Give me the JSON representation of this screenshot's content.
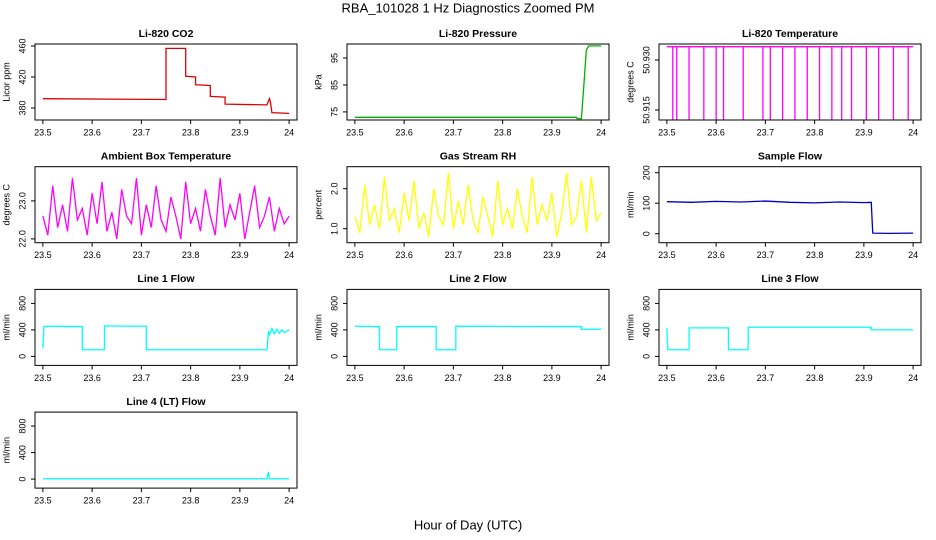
{
  "title": "RBA_101028  1 Hz Diagnostics Zoomed PM",
  "xlabel": "Hour of Day (UTC)",
  "chart_data": [
    {
      "type": "line",
      "title": "Li-820 CO2",
      "ylabel": "Licor ppm",
      "color": "#e00000",
      "x": [
        23.5,
        23.75,
        23.75,
        23.79,
        23.79,
        23.81,
        23.81,
        23.84,
        23.84,
        23.87,
        23.87,
        23.955,
        23.96,
        23.962,
        23.965,
        23.965,
        24.0
      ],
      "values": [
        392,
        391,
        457,
        457,
        421,
        420,
        410,
        409,
        395,
        394,
        385,
        384,
        392,
        388,
        374,
        374,
        373
      ],
      "xlim": [
        23.484,
        24.016
      ],
      "xticks": [
        23.5,
        23.6,
        23.7,
        23.8,
        23.9,
        24.0
      ],
      "ylim": [
        364.5,
        462.6
      ],
      "yticks": [
        380,
        420,
        460
      ]
    },
    {
      "type": "line",
      "title": "Li-820 Pressure",
      "ylabel": "kPa",
      "color": "#00b000",
      "x": [
        23.5,
        23.95,
        23.951,
        23.96,
        23.965,
        23.97,
        23.975,
        24.0
      ],
      "values": [
        73,
        73,
        72.5,
        72.5,
        85,
        98,
        99.5,
        99.5
      ],
      "xlim": [
        23.484,
        24.016
      ],
      "xticks": [
        23.5,
        23.6,
        23.7,
        23.8,
        23.9,
        24.0
      ],
      "ylim": [
        72,
        100.2
      ],
      "yticks": [
        75,
        85,
        95
      ]
    },
    {
      "type": "line",
      "title": "Li-820 Temperature",
      "ylabel": "degrees C",
      "color": "#ff00ff",
      "x": [
        23.5,
        23.512,
        23.512,
        23.512,
        23.52,
        23.52,
        23.52,
        23.545,
        23.545,
        23.545,
        23.575,
        23.575,
        23.575,
        23.6,
        23.6,
        23.6,
        23.615,
        23.615,
        23.615,
        23.655,
        23.655,
        23.655,
        23.695,
        23.695,
        23.695,
        23.71,
        23.71,
        23.71,
        23.735,
        23.735,
        23.735,
        23.76,
        23.76,
        23.76,
        23.785,
        23.785,
        23.785,
        23.81,
        23.81,
        23.81,
        23.835,
        23.835,
        23.835,
        23.855,
        23.855,
        23.855,
        23.875,
        23.875,
        23.875,
        23.905,
        23.905,
        23.905,
        23.93,
        23.93,
        23.93,
        23.96,
        23.96,
        23.96,
        23.99,
        23.99,
        23.99,
        24.0
      ],
      "values": [
        50.934,
        50.934,
        50.912,
        50.934,
        50.934,
        50.912,
        50.934,
        50.934,
        50.912,
        50.934,
        50.934,
        50.912,
        50.934,
        50.934,
        50.912,
        50.934,
        50.934,
        50.912,
        50.934,
        50.934,
        50.912,
        50.934,
        50.934,
        50.912,
        50.934,
        50.934,
        50.912,
        50.934,
        50.934,
        50.912,
        50.934,
        50.934,
        50.912,
        50.934,
        50.934,
        50.912,
        50.934,
        50.934,
        50.912,
        50.934,
        50.934,
        50.912,
        50.934,
        50.934,
        50.912,
        50.934,
        50.934,
        50.912,
        50.934,
        50.934,
        50.912,
        50.934,
        50.934,
        50.912,
        50.934,
        50.934,
        50.912,
        50.934,
        50.934,
        50.912,
        50.934,
        50.934
      ],
      "xlim": [
        23.484,
        24.016
      ],
      "xticks": [
        23.5,
        23.6,
        23.7,
        23.8,
        23.9,
        24.0
      ],
      "ylim": [
        50.912,
        50.9348
      ],
      "yticks": [
        50.915,
        {
          "value": 50.93,
          "label": "50.930"
        }
      ]
    },
    {
      "type": "line",
      "title": "Ambient Box Temperature",
      "ylabel": "degrees C",
      "color": "#ff00ff",
      "x": [
        23.5,
        23.51,
        23.52,
        23.53,
        23.54,
        23.55,
        23.56,
        23.57,
        23.58,
        23.59,
        23.6,
        23.61,
        23.62,
        23.63,
        23.64,
        23.65,
        23.66,
        23.67,
        23.68,
        23.69,
        23.7,
        23.71,
        23.72,
        23.73,
        23.74,
        23.75,
        23.76,
        23.77,
        23.78,
        23.79,
        23.8,
        23.81,
        23.82,
        23.83,
        23.84,
        23.85,
        23.86,
        23.87,
        23.88,
        23.89,
        23.9,
        23.91,
        23.92,
        23.93,
        23.94,
        23.95,
        23.96,
        23.97,
        23.98,
        23.99,
        24.0
      ],
      "values": [
        22.6,
        22.1,
        23.4,
        22.3,
        22.9,
        22.2,
        23.6,
        22.5,
        22.8,
        22.1,
        23.2,
        22.4,
        23.5,
        22.2,
        22.7,
        22.0,
        23.3,
        22.6,
        22.4,
        23.6,
        22.1,
        22.9,
        22.3,
        23.4,
        22.5,
        22.2,
        23.1,
        22.6,
        22.0,
        23.5,
        22.4,
        22.8,
        22.2,
        23.3,
        22.6,
        22.1,
        23.6,
        22.3,
        22.9,
        22.5,
        23.2,
        22.0,
        22.7,
        23.4,
        22.3,
        22.6,
        23.1,
        22.2,
        22.8,
        22.4,
        22.6
      ],
      "xlim": [
        23.484,
        24.016
      ],
      "xticks": [
        23.5,
        23.6,
        23.7,
        23.8,
        23.9,
        24.0
      ],
      "ylim": [
        21.9,
        23.9
      ],
      "yticks": [
        {
          "value": 22,
          "label": "22.0"
        },
        {
          "value": 23,
          "label": "23.0"
        }
      ]
    },
    {
      "type": "line",
      "title": "Gas Stream RH",
      "ylabel": "percent",
      "color": "#ffff00",
      "x": [
        23.5,
        23.51,
        23.52,
        23.53,
        23.54,
        23.55,
        23.56,
        23.57,
        23.58,
        23.59,
        23.6,
        23.61,
        23.62,
        23.63,
        23.64,
        23.65,
        23.66,
        23.67,
        23.68,
        23.69,
        23.7,
        23.71,
        23.72,
        23.73,
        23.74,
        23.75,
        23.76,
        23.77,
        23.78,
        23.79,
        23.8,
        23.81,
        23.82,
        23.83,
        23.84,
        23.85,
        23.86,
        23.87,
        23.88,
        23.89,
        23.9,
        23.91,
        23.92,
        23.93,
        23.94,
        23.95,
        23.96,
        23.97,
        23.98,
        23.99,
        24.0
      ],
      "values": [
        1.3,
        0.9,
        2.1,
        1.1,
        1.6,
        1.0,
        2.3,
        1.2,
        1.5,
        0.9,
        1.9,
        1.2,
        2.2,
        1.0,
        1.4,
        0.8,
        2.0,
        1.3,
        1.1,
        2.4,
        1.0,
        1.7,
        1.1,
        2.1,
        1.2,
        0.9,
        1.8,
        1.3,
        0.8,
        2.2,
        1.1,
        1.5,
        1.0,
        2.0,
        1.3,
        0.9,
        2.3,
        1.1,
        1.6,
        1.2,
        1.9,
        0.8,
        1.4,
        2.4,
        1.1,
        1.3,
        2.2,
        0.9,
        2.3,
        1.2,
        1.4
      ],
      "xlim": [
        23.484,
        24.016
      ],
      "xticks": [
        23.5,
        23.6,
        23.7,
        23.8,
        23.9,
        24.0
      ],
      "ylim": [
        0.65,
        2.55
      ],
      "yticks": [
        {
          "value": 1,
          "label": "1.0"
        },
        {
          "value": 2,
          "label": "2.0"
        }
      ]
    },
    {
      "type": "line",
      "title": "Sample Flow",
      "ylabel": "ml/min",
      "color": "#0000c0",
      "x": [
        23.5,
        23.55,
        23.6,
        23.65,
        23.7,
        23.75,
        23.8,
        23.85,
        23.9,
        23.915,
        23.918,
        23.95,
        24.0
      ],
      "values": [
        105,
        103,
        106,
        104,
        107,
        103,
        101,
        104,
        102,
        103,
        2,
        1,
        2
      ],
      "xlim": [
        23.484,
        24.016
      ],
      "xticks": [
        23.5,
        23.6,
        23.7,
        23.8,
        23.9,
        24.0
      ],
      "ylim": [
        -29.5,
        219.7
      ],
      "yticks": [
        0,
        100,
        200
      ]
    },
    {
      "type": "line",
      "title": "Line 1 Flow",
      "ylabel": "ml/min",
      "color": "#00ffff",
      "x": [
        23.5,
        23.502,
        23.505,
        23.58,
        23.58,
        23.625,
        23.625,
        23.71,
        23.71,
        23.955,
        23.958,
        23.96,
        23.965,
        23.97,
        23.975,
        23.98,
        23.985,
        23.99,
        24.0
      ],
      "values": [
        120,
        450,
        455,
        450,
        100,
        100,
        460,
        455,
        100,
        100,
        380,
        330,
        420,
        340,
        410,
        350,
        400,
        360,
        400
      ],
      "xlim": [
        23.484,
        24.016
      ],
      "xticks": [
        23.5,
        23.6,
        23.7,
        23.8,
        23.9,
        24.0
      ],
      "ylim": [
        -136,
        1011
      ],
      "yticks": [
        0,
        400,
        800
      ]
    },
    {
      "type": "line",
      "title": "Line 2 Flow",
      "ylabel": "ml/min",
      "color": "#00ffff",
      "x": [
        23.5,
        23.55,
        23.55,
        23.585,
        23.585,
        23.665,
        23.665,
        23.705,
        23.705,
        23.96,
        23.96,
        24.0
      ],
      "values": [
        455,
        450,
        100,
        100,
        450,
        450,
        100,
        100,
        455,
        450,
        410,
        410
      ],
      "xlim": [
        23.484,
        24.016
      ],
      "xticks": [
        23.5,
        23.6,
        23.7,
        23.8,
        23.9,
        24.0
      ],
      "ylim": [
        -136,
        1011
      ],
      "yticks": [
        0,
        400,
        800
      ]
    },
    {
      "type": "line",
      "title": "Line 3 Flow",
      "ylabel": "ml/min",
      "color": "#00ffff",
      "x": [
        23.5,
        23.502,
        23.505,
        23.545,
        23.545,
        23.625,
        23.625,
        23.665,
        23.665,
        23.915,
        23.915,
        24.0
      ],
      "values": [
        430,
        100,
        100,
        100,
        430,
        430,
        100,
        100,
        440,
        440,
        400,
        400
      ],
      "xlim": [
        23.484,
        24.016
      ],
      "xticks": [
        23.5,
        23.6,
        23.7,
        23.8,
        23.9,
        24.0
      ],
      "ylim": [
        -136,
        1011
      ],
      "yticks": [
        0,
        400,
        800
      ]
    },
    {
      "type": "line",
      "title": "Line 4 (LT) Flow",
      "ylabel": "ml/min",
      "color": "#00ffff",
      "x": [
        23.5,
        23.955,
        23.958,
        23.96,
        23.962,
        24.0
      ],
      "values": [
        5,
        5,
        110,
        5,
        5,
        5
      ],
      "xlim": [
        23.484,
        24.016
      ],
      "xticks": [
        23.5,
        23.6,
        23.7,
        23.8,
        23.9,
        24.0
      ],
      "ylim": [
        -136,
        1011
      ],
      "yticks": [
        0,
        400,
        800
      ]
    }
  ]
}
